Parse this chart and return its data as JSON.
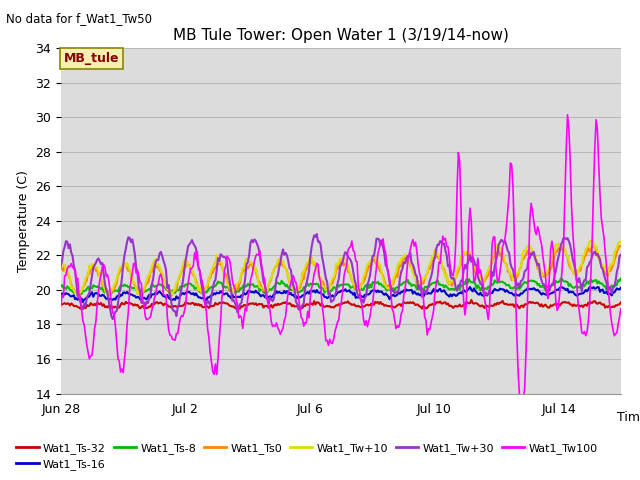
{
  "title": "MB Tule Tower: Open Water 1 (3/19/14-now)",
  "no_data_text": "No data for f_Wat1_Tw50",
  "legend_box_text": "MB_tule",
  "xlabel": "Time",
  "ylabel": "Temperature (C)",
  "ylim": [
    14,
    34
  ],
  "yticks": [
    14,
    16,
    18,
    20,
    22,
    24,
    26,
    28,
    30,
    32,
    34
  ],
  "bg_color": "#dcdcdc",
  "fig_color": "#ffffff",
  "series": {
    "Wat1_Ts-32": {
      "color": "#cc0000",
      "lw": 1.5
    },
    "Wat1_Ts-16": {
      "color": "#0000cc",
      "lw": 1.5
    },
    "Wat1_Ts-8": {
      "color": "#00bb00",
      "lw": 1.5
    },
    "Wat1_Ts0": {
      "color": "#ff8800",
      "lw": 1.5
    },
    "Wat1_Tw+10": {
      "color": "#dddd00",
      "lw": 1.5
    },
    "Wat1_Tw+30": {
      "color": "#9933cc",
      "lw": 1.5
    },
    "Wat1_Tw100": {
      "color": "#ff00ff",
      "lw": 1.2
    }
  },
  "xstart": 0,
  "xend": 18,
  "xtick_positions": [
    0,
    4,
    8,
    12,
    16
  ],
  "xtick_labels": [
    "Jun 28",
    "Jul 2",
    "Jul 6",
    "Jul 10",
    "Jul 14"
  ]
}
